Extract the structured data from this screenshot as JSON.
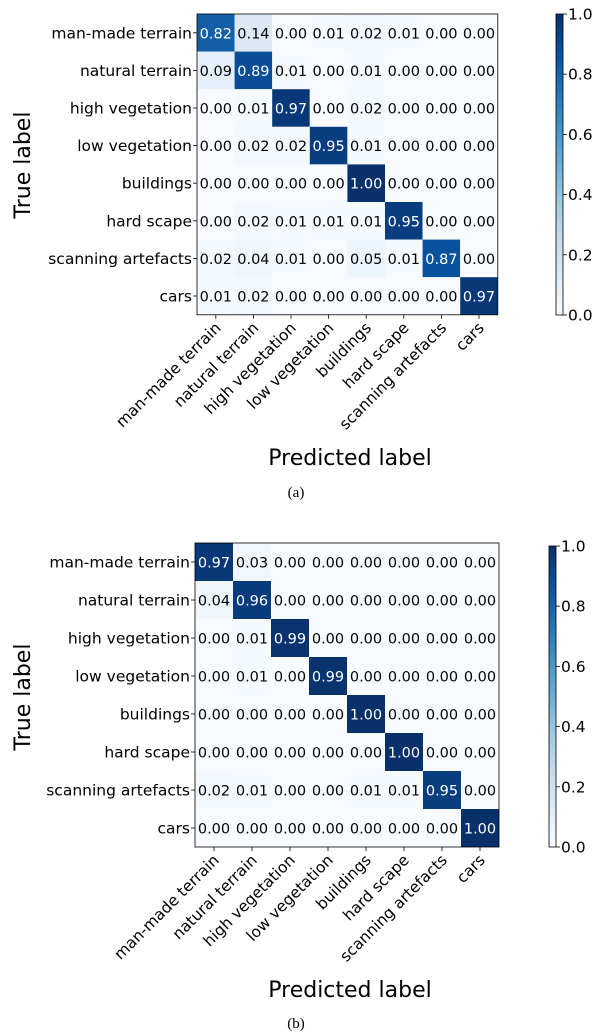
{
  "figures": [
    {
      "caption": "(a)",
      "xlabel": "Predicted label",
      "ylabel": "True label",
      "colorbar_ticks": [
        "0.0",
        "0.2",
        "0.4",
        "0.6",
        "0.8",
        "1.0"
      ],
      "colorbar_range": [
        0,
        1
      ],
      "colormap": [
        "#f7fbff",
        "#deebf7",
        "#c6dbef",
        "#9ecae1",
        "#6baed6",
        "#4292c6",
        "#2171b5",
        "#08519c",
        "#08306b"
      ],
      "labels": [
        "man-made terrain",
        "natural terrain",
        "high vegetation",
        "low vegetation",
        "buildings",
        "hard scape",
        "scanning artefacts",
        "cars"
      ]
    },
    {
      "caption": "(b)",
      "xlabel": "Predicted label",
      "ylabel": "True label",
      "colorbar_ticks": [
        "0.0",
        "0.2",
        "0.4",
        "0.6",
        "0.8",
        "1.0"
      ],
      "colorbar_range": [
        0,
        1
      ],
      "colormap": [
        "#f7fbff",
        "#deebf7",
        "#c6dbef",
        "#9ecae1",
        "#6baed6",
        "#4292c6",
        "#2171b5",
        "#08519c",
        "#08306b"
      ],
      "labels": [
        "man-made terrain",
        "natural terrain",
        "high vegetation",
        "low vegetation",
        "buildings",
        "hard scape",
        "scanning artefacts",
        "cars"
      ]
    }
  ],
  "chart_data": [
    {
      "type": "heatmap",
      "title": "",
      "xlabel": "Predicted label",
      "ylabel": "True label",
      "x": [
        "man-made terrain",
        "natural terrain",
        "high vegetation",
        "low vegetation",
        "buildings",
        "hard scape",
        "scanning artefacts",
        "cars"
      ],
      "y": [
        "man-made terrain",
        "natural terrain",
        "high vegetation",
        "low vegetation",
        "buildings",
        "hard scape",
        "scanning artefacts",
        "cars"
      ],
      "values": [
        [
          "0.82",
          "0.14",
          "0.00",
          "0.01",
          "0.02",
          "0.01",
          "0.00",
          "0.00"
        ],
        [
          "0.09",
          "0.89",
          "0.01",
          "0.00",
          "0.01",
          "0.00",
          "0.00",
          "0.00"
        ],
        [
          "0.00",
          "0.01",
          "0.97",
          "0.00",
          "0.02",
          "0.00",
          "0.00",
          "0.00"
        ],
        [
          "0.00",
          "0.02",
          "0.02",
          "0.95",
          "0.01",
          "0.00",
          "0.00",
          "0.00"
        ],
        [
          "0.00",
          "0.00",
          "0.00",
          "0.00",
          "1.00",
          "0.00",
          "0.00",
          "0.00"
        ],
        [
          "0.00",
          "0.02",
          "0.01",
          "0.01",
          "0.01",
          "0.95",
          "0.00",
          "0.00"
        ],
        [
          "0.02",
          "0.04",
          "0.01",
          "0.00",
          "0.05",
          "0.01",
          "0.87",
          "0.00"
        ],
        [
          "0.01",
          "0.02",
          "0.00",
          "0.00",
          "0.00",
          "0.00",
          "0.00",
          "0.97"
        ]
      ],
      "zlim": [
        0,
        1
      ],
      "legend": "colorbar-right"
    },
    {
      "type": "heatmap",
      "title": "",
      "xlabel": "Predicted label",
      "ylabel": "True label",
      "x": [
        "man-made terrain",
        "natural terrain",
        "high vegetation",
        "low vegetation",
        "buildings",
        "hard scape",
        "scanning artefacts",
        "cars"
      ],
      "y": [
        "man-made terrain",
        "natural terrain",
        "high vegetation",
        "low vegetation",
        "buildings",
        "hard scape",
        "scanning artefacts",
        "cars"
      ],
      "values": [
        [
          "0.97",
          "0.03",
          "0.00",
          "0.00",
          "0.00",
          "0.00",
          "0.00",
          "0.00"
        ],
        [
          "0.04",
          "0.96",
          "0.00",
          "0.00",
          "0.00",
          "0.00",
          "0.00",
          "0.00"
        ],
        [
          "0.00",
          "0.01",
          "0.99",
          "0.00",
          "0.00",
          "0.00",
          "0.00",
          "0.00"
        ],
        [
          "0.00",
          "0.01",
          "0.00",
          "0.99",
          "0.00",
          "0.00",
          "0.00",
          "0.00"
        ],
        [
          "0.00",
          "0.00",
          "0.00",
          "0.00",
          "1.00",
          "0.00",
          "0.00",
          "0.00"
        ],
        [
          "0.00",
          "0.00",
          "0.00",
          "0.00",
          "0.00",
          "1.00",
          "0.00",
          "0.00"
        ],
        [
          "0.02",
          "0.01",
          "0.00",
          "0.00",
          "0.01",
          "0.01",
          "0.95",
          "0.00"
        ],
        [
          "0.00",
          "0.00",
          "0.00",
          "0.00",
          "0.00",
          "0.00",
          "0.00",
          "1.00"
        ]
      ],
      "zlim": [
        0,
        1
      ],
      "legend": "colorbar-right"
    }
  ]
}
